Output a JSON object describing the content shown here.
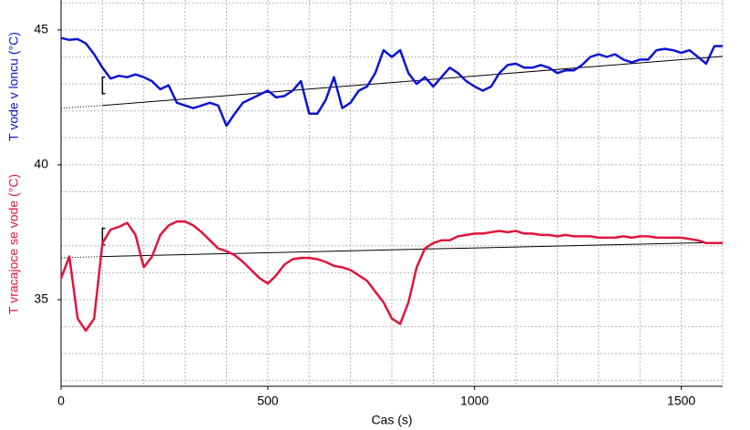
{
  "chart_data": {
    "type": "line",
    "x_label": "Cas (s)",
    "x": [
      0,
      20,
      40,
      60,
      80,
      100,
      120,
      140,
      160,
      180,
      200,
      220,
      240,
      260,
      280,
      300,
      320,
      340,
      360,
      380,
      400,
      420,
      440,
      460,
      480,
      500,
      520,
      540,
      560,
      580,
      600,
      620,
      640,
      660,
      680,
      700,
      720,
      740,
      760,
      780,
      800,
      820,
      840,
      860,
      880,
      900,
      920,
      940,
      960,
      980,
      1000,
      1020,
      1040,
      1060,
      1080,
      1100,
      1120,
      1140,
      1160,
      1180,
      1200,
      1220,
      1240,
      1260,
      1280,
      1300,
      1320,
      1340,
      1360,
      1380,
      1400,
      1420,
      1440,
      1460,
      1480,
      1500,
      1520,
      1540,
      1560,
      1580,
      1600
    ],
    "series": [
      {
        "name": "T vode v loncu (°C)",
        "color": "#0a14d2",
        "values": [
          44.7,
          44.63,
          44.66,
          44.5,
          44.1,
          43.6,
          43.2,
          43.3,
          43.25,
          43.35,
          43.25,
          43.1,
          42.8,
          42.95,
          42.3,
          42.2,
          42.1,
          42.2,
          42.3,
          42.2,
          41.45,
          41.9,
          42.3,
          42.45,
          42.6,
          42.75,
          42.5,
          42.55,
          42.75,
          43.1,
          41.9,
          41.9,
          42.4,
          43.25,
          42.1,
          42.3,
          42.75,
          42.9,
          43.4,
          44.25,
          44.0,
          44.25,
          43.4,
          43.0,
          43.25,
          42.9,
          43.25,
          43.6,
          43.4,
          43.1,
          42.9,
          42.75,
          42.9,
          43.4,
          43.7,
          43.75,
          43.6,
          43.6,
          43.7,
          43.6,
          43.4,
          43.5,
          43.5,
          43.7,
          44.0,
          44.1,
          44.0,
          44.1,
          43.9,
          43.8,
          43.9,
          43.9,
          44.25,
          44.3,
          44.25,
          44.15,
          44.25,
          44.0,
          43.75,
          44.4,
          44.4
        ]
      },
      {
        "name": "T vracajoce se vode (°C)",
        "color": "#e0143c",
        "values": [
          35.8,
          36.6,
          34.3,
          33.85,
          34.3,
          37.1,
          37.6,
          37.7,
          37.85,
          37.4,
          36.2,
          36.6,
          37.4,
          37.75,
          37.9,
          37.9,
          37.75,
          37.5,
          37.2,
          36.9,
          36.8,
          36.65,
          36.4,
          36.1,
          35.8,
          35.6,
          35.9,
          36.3,
          36.5,
          36.55,
          36.55,
          36.5,
          36.4,
          36.25,
          36.2,
          36.1,
          35.9,
          35.7,
          35.3,
          34.9,
          34.3,
          34.1,
          34.9,
          36.2,
          36.9,
          37.1,
          37.2,
          37.2,
          37.35,
          37.4,
          37.45,
          37.45,
          37.5,
          37.55,
          37.5,
          37.55,
          37.45,
          37.45,
          37.4,
          37.4,
          37.35,
          37.4,
          37.35,
          37.35,
          37.35,
          37.3,
          37.3,
          37.3,
          37.35,
          37.3,
          37.35,
          37.35,
          37.3,
          37.3,
          37.3,
          37.3,
          37.25,
          37.2,
          37.1,
          37.1,
          37.1
        ]
      }
    ],
    "fit_lines": [
      {
        "color": "#000000",
        "x": [
          0,
          100,
          1600
        ],
        "values": [
          42.1,
          42.2,
          44.02
        ]
      },
      {
        "color": "#000000",
        "x": [
          0,
          100,
          1600
        ],
        "values": [
          36.55,
          36.6,
          37.13
        ]
      }
    ],
    "xlim": [
      0,
      1600
    ],
    "xticks": [
      0,
      500,
      1000,
      1500
    ],
    "xminorticks": [
      100,
      200,
      300,
      400,
      600,
      700,
      800,
      900,
      1100,
      1200,
      1300,
      1400,
      1600
    ],
    "ylim": [
      31.79,
      46.11
    ],
    "yticks": [
      35,
      40,
      45
    ],
    "yminorticks": [
      32,
      33,
      34,
      36,
      37,
      38,
      39,
      41,
      42,
      43,
      44,
      46
    ],
    "grid": true
  }
}
